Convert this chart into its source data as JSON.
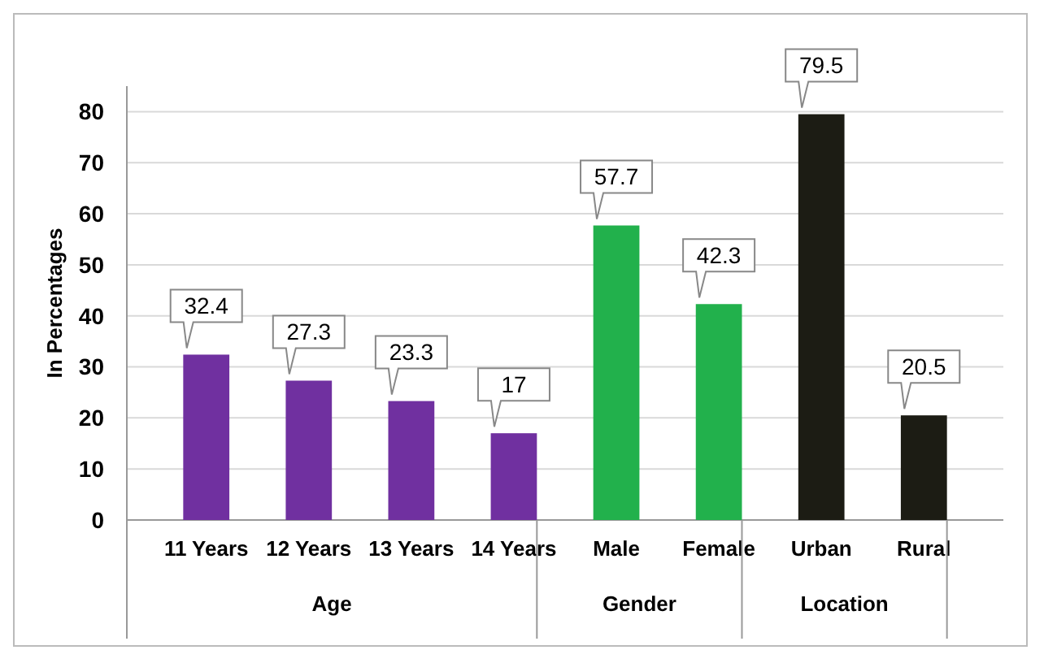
{
  "chart_data": {
    "type": "bar",
    "ylabel": "In Percentages",
    "categories": [
      "11 Years",
      "12 Years",
      "13 Years",
      "14 Years",
      "Male",
      "Female",
      "Urban",
      "Rural"
    ],
    "values": [
      32.4,
      27.3,
      23.3,
      17,
      57.7,
      42.3,
      79.5,
      20.5
    ],
    "colors": [
      "#7030a0",
      "#7030a0",
      "#7030a0",
      "#7030a0",
      "#22b14c",
      "#22b14c",
      "#1c1c14",
      "#1c1c14"
    ],
    "annotations": [
      "Age",
      "Gender",
      "Location"
    ],
    "ylim": [
      0,
      85
    ],
    "yticks": [
      0,
      10,
      20,
      30,
      40,
      50,
      60,
      70,
      80
    ],
    "grid": "y",
    "data_labels": true
  }
}
